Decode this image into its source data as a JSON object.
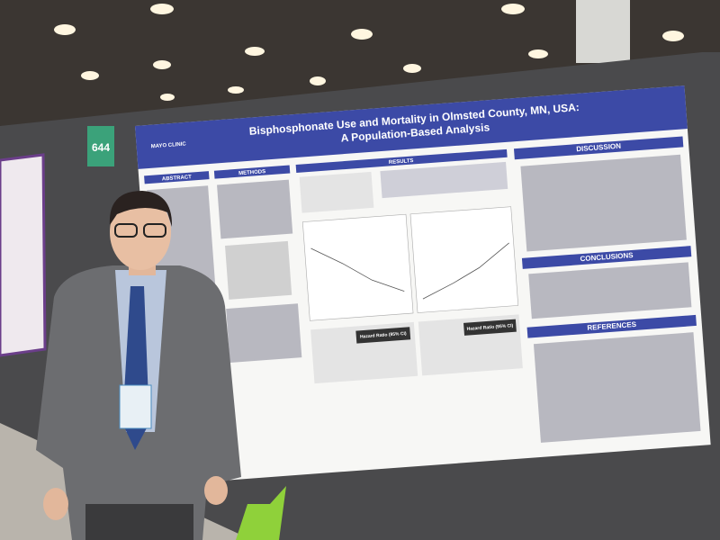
{
  "scene": {
    "booth_number": "644",
    "poster": {
      "logo": "MAYO CLINIC",
      "title": "Bisphosphonate Use and Mortality in Olmsted County, MN, USA:",
      "subtitle": "A Population-Based Analysis",
      "sections": [
        "ABSTRACT",
        "METHODS",
        "RESULTS",
        "DISCUSSION",
        "CONCLUSIONS",
        "REFERENCES"
      ],
      "table_headers": [
        "Hazard Ratio (95% CI)",
        "Hazard Ratio (95% CI)"
      ]
    }
  }
}
